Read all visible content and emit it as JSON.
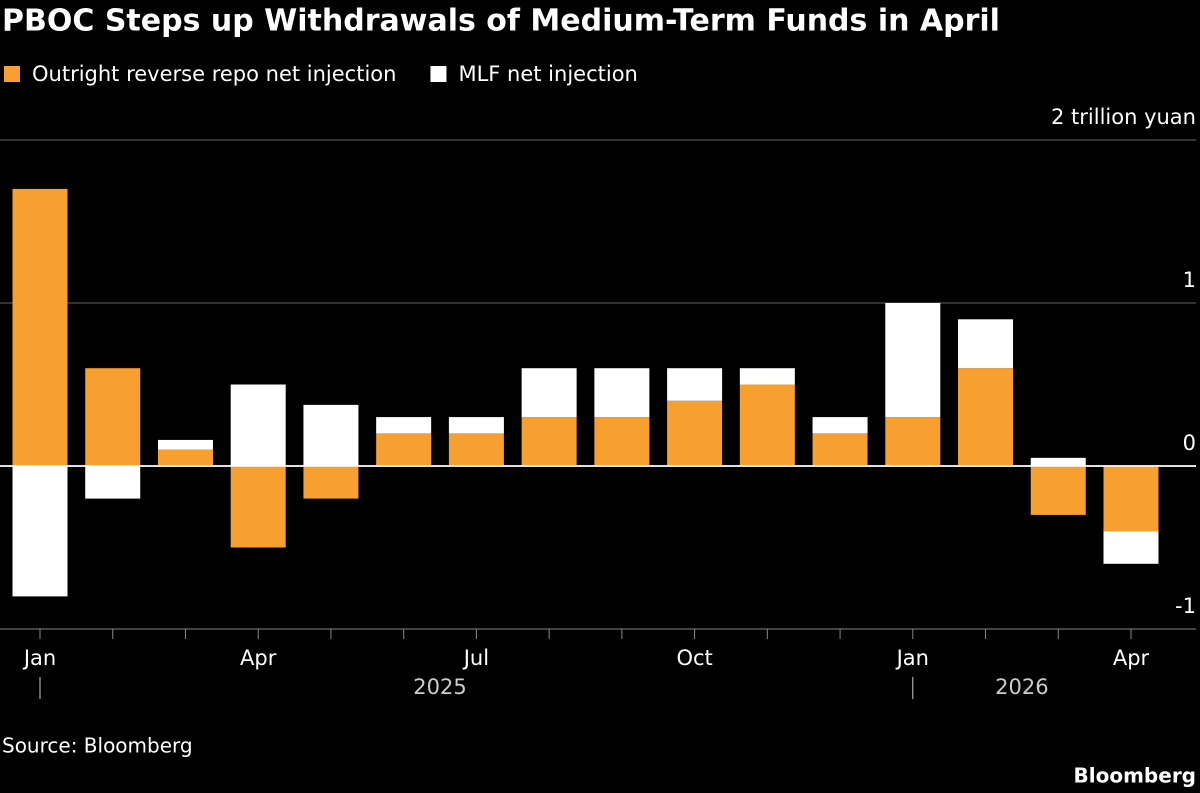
{
  "chart_data": {
    "type": "stacked_bar",
    "title": "PBOC Steps up Withdrawals of Medium-Term Funds in April",
    "categories": [
      "Jan",
      null,
      null,
      "Apr",
      null,
      null,
      "Jul",
      null,
      null,
      "Oct",
      null,
      null,
      "Jan",
      null,
      null,
      "Apr"
    ],
    "year_labels": [
      "2025",
      "2026"
    ],
    "series": [
      {
        "name": "Outright reverse repo net injection",
        "color": "#f7a030",
        "values": [
          1.7,
          0.6,
          0.1,
          -0.5,
          -0.2,
          0.2,
          0.2,
          0.3,
          0.3,
          0.4,
          0.5,
          0.2,
          0.3,
          0.6,
          -0.3,
          -0.4
        ]
      },
      {
        "name": "MLF net injection",
        "color": "#ffffff",
        "values": [
          -0.8,
          -0.2,
          0.06,
          0.5,
          0.375,
          0.1,
          0.1,
          0.3,
          0.3,
          0.2,
          0.1,
          0.1,
          0.7,
          0.3,
          0.05,
          -0.2
        ]
      }
    ],
    "ylim": [
      -1,
      2
    ],
    "yticks": [
      {
        "value": 2,
        "label": "2 trillion yuan"
      },
      1,
      0,
      -1
    ],
    "grid": true,
    "source": "Source: Bloomberg",
    "brand": "Bloomberg"
  }
}
